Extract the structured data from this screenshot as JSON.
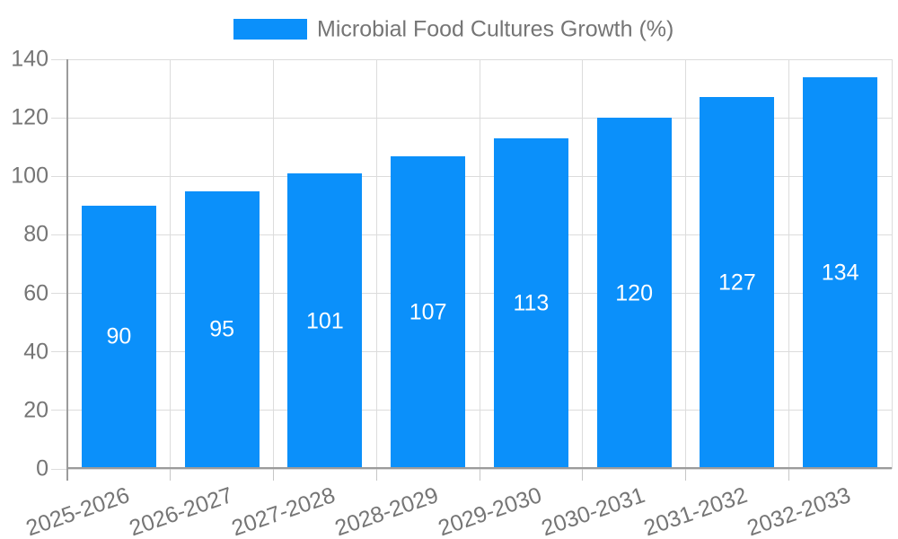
{
  "chart_data": {
    "type": "bar",
    "title": "Microbial Food Cultures Growth (%)",
    "categories": [
      "2025-2026",
      "2026-2027",
      "2027-2028",
      "2028-2029",
      "2029-2030",
      "2030-2031",
      "2031-2032",
      "2032-2033"
    ],
    "values": [
      90,
      95,
      101,
      107,
      113,
      120,
      127,
      134
    ],
    "value_labels": [
      "90",
      "95",
      "101",
      "107",
      "113",
      "120",
      "127",
      "134"
    ],
    "ytick_labels": [
      "0",
      "20",
      "40",
      "60",
      "80",
      "100",
      "120",
      "140"
    ],
    "yticks": [
      0,
      20,
      40,
      60,
      80,
      100,
      120,
      140
    ],
    "ylim": [
      0,
      140
    ],
    "xlabel": "",
    "ylabel": "",
    "grid": true,
    "legend_position": "top",
    "value_label_position": "inside-center",
    "x_label_rotation_deg": -19
  },
  "colors": {
    "bar": "#0b90fa",
    "axis_text": "#757575",
    "value_text": "#ffffff",
    "gridline": "#dcdcdc",
    "axis_line": "#9b9b9b",
    "minor_tick": "#c6c6c6",
    "background": "#ffffff"
  }
}
